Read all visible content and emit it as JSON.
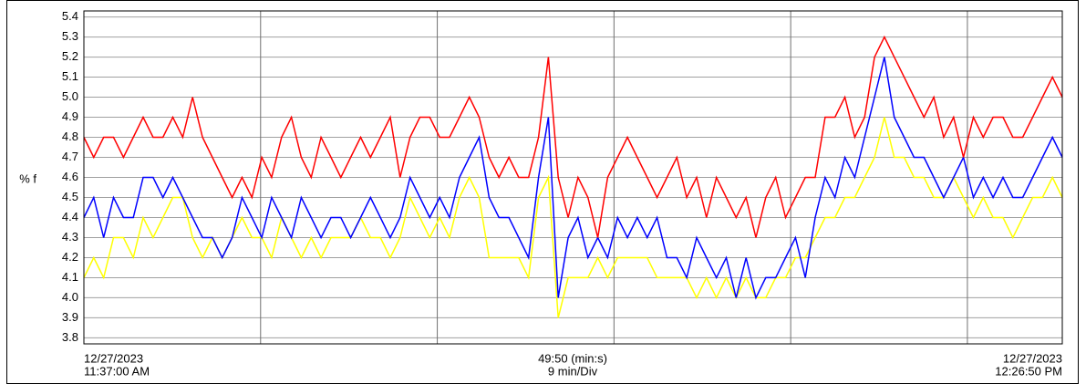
{
  "chart_data": {
    "type": "line",
    "ylabel": "% f",
    "x_start_label": [
      "12/27/2023",
      "11:37:00 AM"
    ],
    "x_center_label": [
      "49:50 (min:s)",
      "9 min/Div"
    ],
    "x_end_label": [
      "12/27/2023",
      "12:26:50 PM"
    ],
    "xlim": [
      0,
      2990
    ],
    "xticks": [
      540,
      1080,
      1620,
      2160,
      2700
    ],
    "ylim": [
      3.77,
      5.43
    ],
    "yticks": [
      3.8,
      3.9,
      {
        "value": 4,
        "label": "4.0"
      },
      4.1,
      4.2,
      4.3,
      4.4,
      4.5,
      4.6,
      4.7,
      4.8,
      4.9,
      {
        "value": 5,
        "label": "5.0"
      },
      5.1,
      5.2,
      5.3,
      5.4
    ],
    "grid": true,
    "series": [
      {
        "color": "#ffff00",
        "values": [
          4.1,
          4.2,
          4.1,
          4.3,
          4.3,
          4.2,
          4.4,
          4.3,
          4.4,
          4.5,
          4.5,
          4.3,
          4.2,
          4.3,
          4.2,
          4.3,
          4.4,
          4.3,
          4.3,
          4.2,
          4.4,
          4.3,
          4.2,
          4.3,
          4.2,
          4.3,
          4.3,
          4.3,
          4.4,
          4.3,
          4.3,
          4.2,
          4.3,
          4.5,
          4.4,
          4.3,
          4.4,
          4.3,
          4.5,
          4.6,
          4.5,
          4.2,
          4.2,
          4.2,
          4.2,
          4.1,
          4.5,
          4.6,
          3.9,
          4.1,
          4.1,
          4.1,
          4.2,
          4.1,
          4.2,
          4.2,
          4.2,
          4.2,
          4.1,
          4.1,
          4.1,
          4.1,
          4.0,
          4.1,
          4.0,
          4.1,
          4.0,
          4.1,
          4.0,
          4.0,
          4.1,
          4.1,
          4.2,
          4.2,
          4.3,
          4.4,
          4.4,
          4.5,
          4.5,
          4.6,
          4.7,
          4.9,
          4.7,
          4.7,
          4.6,
          4.6,
          4.5,
          4.5,
          4.6,
          4.5,
          4.4,
          4.5,
          4.4,
          4.4,
          4.3,
          4.4,
          4.5,
          4.5,
          4.6,
          4.5
        ]
      },
      {
        "color": "#0000ff",
        "values": [
          4.4,
          4.5,
          4.3,
          4.5,
          4.4,
          4.4,
          4.6,
          4.6,
          4.5,
          4.6,
          4.5,
          4.4,
          4.3,
          4.3,
          4.2,
          4.3,
          4.5,
          4.4,
          4.3,
          4.5,
          4.4,
          4.3,
          4.5,
          4.4,
          4.3,
          4.4,
          4.4,
          4.3,
          4.4,
          4.5,
          4.4,
          4.3,
          4.4,
          4.6,
          4.5,
          4.4,
          4.5,
          4.4,
          4.6,
          4.7,
          4.8,
          4.5,
          4.4,
          4.4,
          4.3,
          4.2,
          4.6,
          4.9,
          4.0,
          4.3,
          4.4,
          4.2,
          4.3,
          4.2,
          4.4,
          4.3,
          4.4,
          4.3,
          4.4,
          4.2,
          4.2,
          4.1,
          4.3,
          4.2,
          4.1,
          4.2,
          4.0,
          4.2,
          4.0,
          4.1,
          4.1,
          4.2,
          4.3,
          4.1,
          4.4,
          4.6,
          4.5,
          4.7,
          4.6,
          4.8,
          5.0,
          5.2,
          4.9,
          4.8,
          4.7,
          4.7,
          4.6,
          4.5,
          4.6,
          4.7,
          4.5,
          4.6,
          4.5,
          4.6,
          4.5,
          4.5,
          4.6,
          4.7,
          4.8,
          4.7
        ]
      },
      {
        "color": "#ff0000",
        "values": [
          4.8,
          4.7,
          4.8,
          4.8,
          4.7,
          4.8,
          4.9,
          4.8,
          4.8,
          4.9,
          4.8,
          5.0,
          4.8,
          4.7,
          4.6,
          4.5,
          4.6,
          4.5,
          4.7,
          4.6,
          4.8,
          4.9,
          4.7,
          4.6,
          4.8,
          4.7,
          4.6,
          4.7,
          4.8,
          4.7,
          4.8,
          4.9,
          4.6,
          4.8,
          4.9,
          4.9,
          4.8,
          4.8,
          4.9,
          5.0,
          4.9,
          4.7,
          4.6,
          4.7,
          4.6,
          4.6,
          4.8,
          5.2,
          4.6,
          4.4,
          4.6,
          4.5,
          4.3,
          4.6,
          4.7,
          4.8,
          4.7,
          4.6,
          4.5,
          4.6,
          4.7,
          4.5,
          4.6,
          4.4,
          4.6,
          4.5,
          4.4,
          4.5,
          4.3,
          4.5,
          4.6,
          4.4,
          4.5,
          4.6,
          4.6,
          4.9,
          4.9,
          5.0,
          4.8,
          4.9,
          5.2,
          5.3,
          5.2,
          5.1,
          5.0,
          4.9,
          5.0,
          4.8,
          4.9,
          4.7,
          4.9,
          4.8,
          4.9,
          4.9,
          4.8,
          4.8,
          4.9,
          5.0,
          5.1,
          5.0
        ]
      }
    ]
  }
}
